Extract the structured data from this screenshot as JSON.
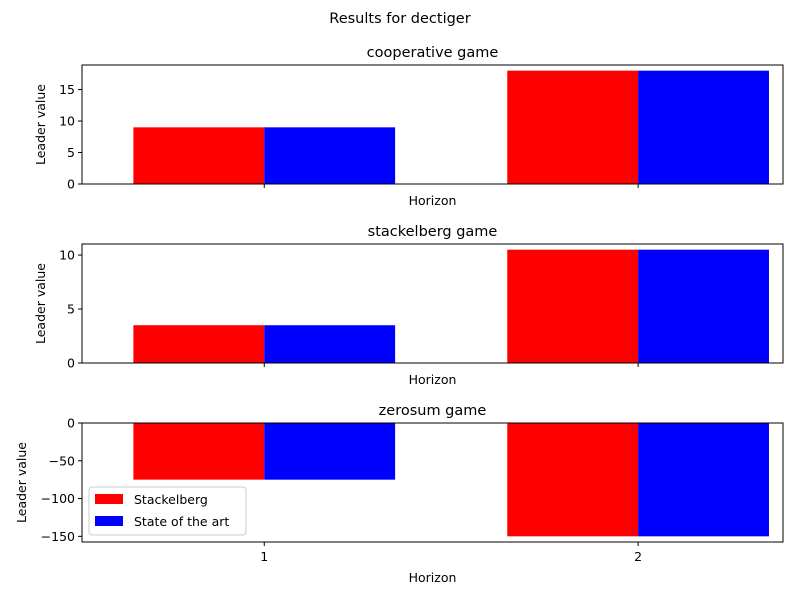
{
  "figure": {
    "suptitle": "Results for dectiger"
  },
  "chart_data": [
    {
      "type": "bar",
      "title": "cooperative game",
      "xlabel": "Horizon",
      "ylabel": "Leader value",
      "categories": [
        "1",
        "2"
      ],
      "series": [
        {
          "name": "Stackelberg",
          "color": "#ff0000",
          "values": [
            9,
            18
          ]
        },
        {
          "name": "State of the art",
          "color": "#0000ff",
          "values": [
            9,
            18
          ]
        }
      ],
      "ylim": [
        0,
        18.9
      ],
      "yticks": [
        0,
        5,
        10,
        15
      ],
      "show_xticklabels": false,
      "legend": null,
      "grid": false
    },
    {
      "type": "bar",
      "title": "stackelberg game",
      "xlabel": "Horizon",
      "ylabel": "Leader value",
      "categories": [
        "1",
        "2"
      ],
      "series": [
        {
          "name": "Stackelberg",
          "color": "#ff0000",
          "values": [
            3.5,
            10.5
          ]
        },
        {
          "name": "State of the art",
          "color": "#0000ff",
          "values": [
            3.5,
            10.5
          ]
        }
      ],
      "ylim": [
        0,
        11.025
      ],
      "yticks": [
        0,
        5,
        10
      ],
      "show_xticklabels": false,
      "legend": null,
      "grid": false
    },
    {
      "type": "bar",
      "title": "zerosum game",
      "xlabel": "Horizon",
      "ylabel": "Leader value",
      "categories": [
        "1",
        "2"
      ],
      "series": [
        {
          "name": "Stackelberg",
          "color": "#ff0000",
          "values": [
            -75,
            -150
          ]
        },
        {
          "name": "State of the art",
          "color": "#0000ff",
          "values": [
            -75,
            -150
          ]
        }
      ],
      "ylim": [
        -157.5,
        0
      ],
      "yticks": [
        0,
        -50,
        -100,
        -150
      ],
      "show_xticklabels": true,
      "legend": "lower-left",
      "grid": false
    }
  ]
}
